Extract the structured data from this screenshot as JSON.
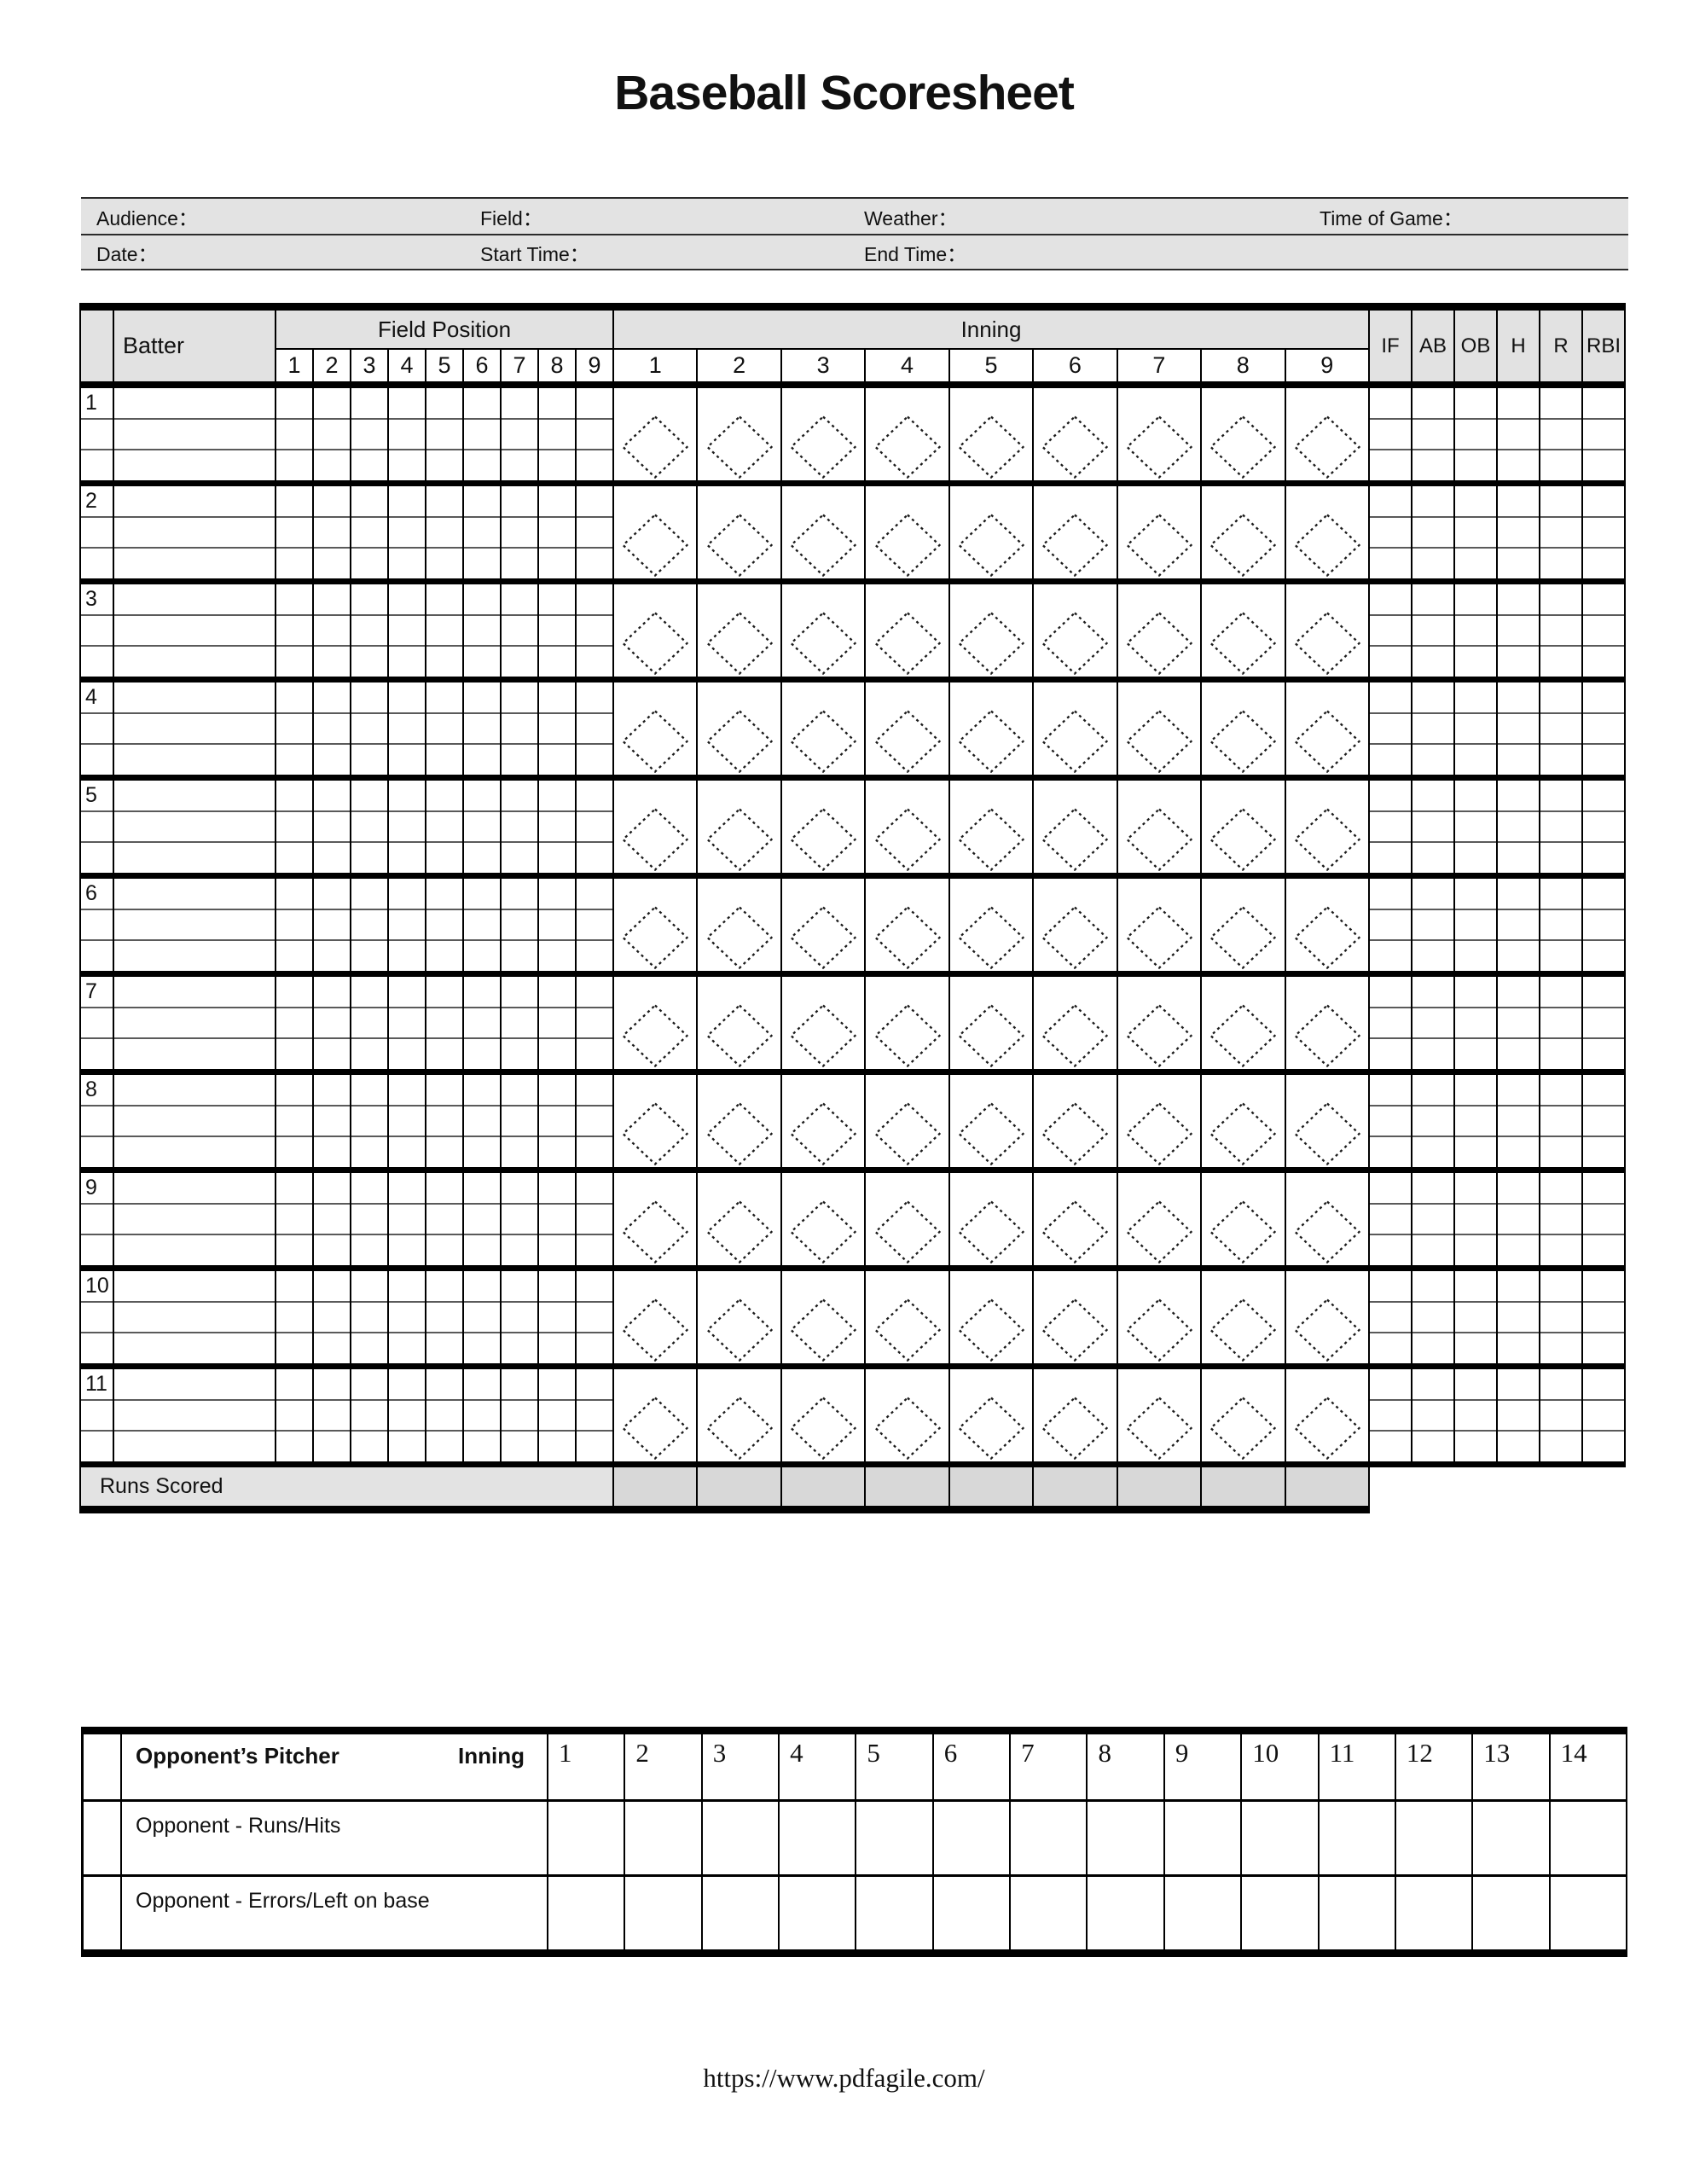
{
  "page": {
    "title": "Baseball Scoresheet",
    "footer_url": "https://www.pdfagile.com/"
  },
  "info_header": {
    "row1": [
      {
        "name": "audience",
        "label": "Audience："
      },
      {
        "name": "field",
        "label": "Field："
      },
      {
        "name": "weather",
        "label": "Weather："
      },
      {
        "name": "time-of-game",
        "label": "Time of Game："
      }
    ],
    "row2": [
      {
        "name": "date",
        "label": "Date："
      },
      {
        "name": "start-time",
        "label": "Start Time："
      },
      {
        "name": "end-time",
        "label": "End Time："
      }
    ]
  },
  "main_table": {
    "batter_header": "Batter",
    "field_position_header": "Field Position",
    "inning_header": "Inning",
    "field_position_cols": [
      "1",
      "2",
      "3",
      "4",
      "5",
      "6",
      "7",
      "8",
      "9"
    ],
    "inning_cols": [
      "1",
      "2",
      "3",
      "4",
      "5",
      "6",
      "7",
      "8",
      "9"
    ],
    "stat_cols": [
      "IF",
      "AB",
      "OB",
      "H",
      "R",
      "RBI"
    ],
    "batter_rows": [
      "1",
      "2",
      "3",
      "4",
      "5",
      "6",
      "7",
      "8",
      "9",
      "10",
      "11"
    ],
    "runs_scored_label": "Runs Scored",
    "icons": {
      "inning_diamond": "base-diamond-icon"
    }
  },
  "opponent_table": {
    "pitcher_label": "Opponent’s Pitcher",
    "inning_label": "Inning",
    "inning_cols": [
      "1",
      "2",
      "3",
      "4",
      "5",
      "6",
      "7",
      "8",
      "9",
      "10",
      "11",
      "12",
      "13",
      "14"
    ],
    "row_labels": [
      "Opponent - Runs/Hits",
      "Opponent - Errors/Left on base"
    ]
  },
  "colors": {
    "header_fill": "#e2e2e2",
    "info_fill": "#e3e3e3",
    "runs_row_fill": "#e3e3e3",
    "runs_cell_fill": "#d8d8d8",
    "line_black": "#000000",
    "subline_grey": "#5a5a5a"
  }
}
